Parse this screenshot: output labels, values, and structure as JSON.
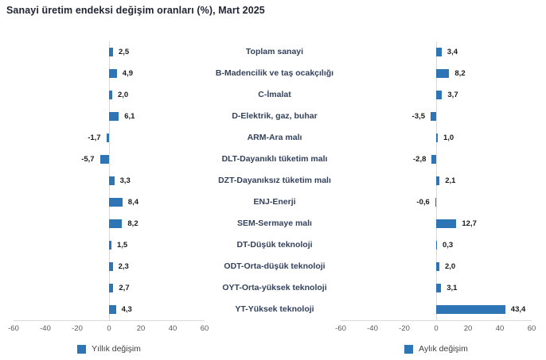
{
  "title": "Sanayi üretim endeksi değişim oranları (%), Mart 2025",
  "chart_data": {
    "type": "bar",
    "orientation": "horizontal",
    "categories": [
      "Toplam sanayi",
      "B-Madencilik ve taş ocakçılığı",
      "C-İmalat",
      "D-Elektrik, gaz, buhar",
      "ARM-Ara malı",
      "DLT-Dayanıklı tüketim malı",
      "DZT-Dayanıksız tüketim malı",
      "ENJ-Enerji",
      "SEM-Sermaye malı",
      "DT-Düşük teknoloji",
      "ODT-Orta-düşük teknoloji",
      "OYT-Orta-yüksek teknoloji",
      "YT-Yüksek teknoloji"
    ],
    "series": [
      {
        "name": "Yıllık değişim",
        "values": [
          2.5,
          4.9,
          2.0,
          6.1,
          -1.7,
          -5.7,
          3.3,
          8.4,
          8.2,
          1.5,
          2.3,
          2.7,
          4.3
        ]
      },
      {
        "name": "Aylık değişim",
        "values": [
          3.4,
          8.2,
          3.7,
          -3.5,
          1.0,
          -2.8,
          2.1,
          -0.6,
          12.7,
          0.3,
          2.0,
          3.1,
          43.4
        ]
      }
    ],
    "xlim": [
      -60,
      60
    ],
    "xticks": [
      -60,
      -40,
      -20,
      0,
      20,
      40,
      60
    ],
    "grid": false,
    "legend_position": "bottom",
    "decimal_separator": ",",
    "bar_color": "#2e75b6"
  },
  "legend": {
    "left_label": "Yıllık değişim",
    "right_label": "Aylık değişim"
  },
  "colors": {
    "bar": "#2e75b6",
    "title_text": "#1f2333",
    "category_text": "#33415c",
    "value_text": "#1a1a1a",
    "tick_text": "#595959",
    "axis_line": "#d9d9d9",
    "legend_text": "#404040",
    "background": "#ffffff"
  }
}
